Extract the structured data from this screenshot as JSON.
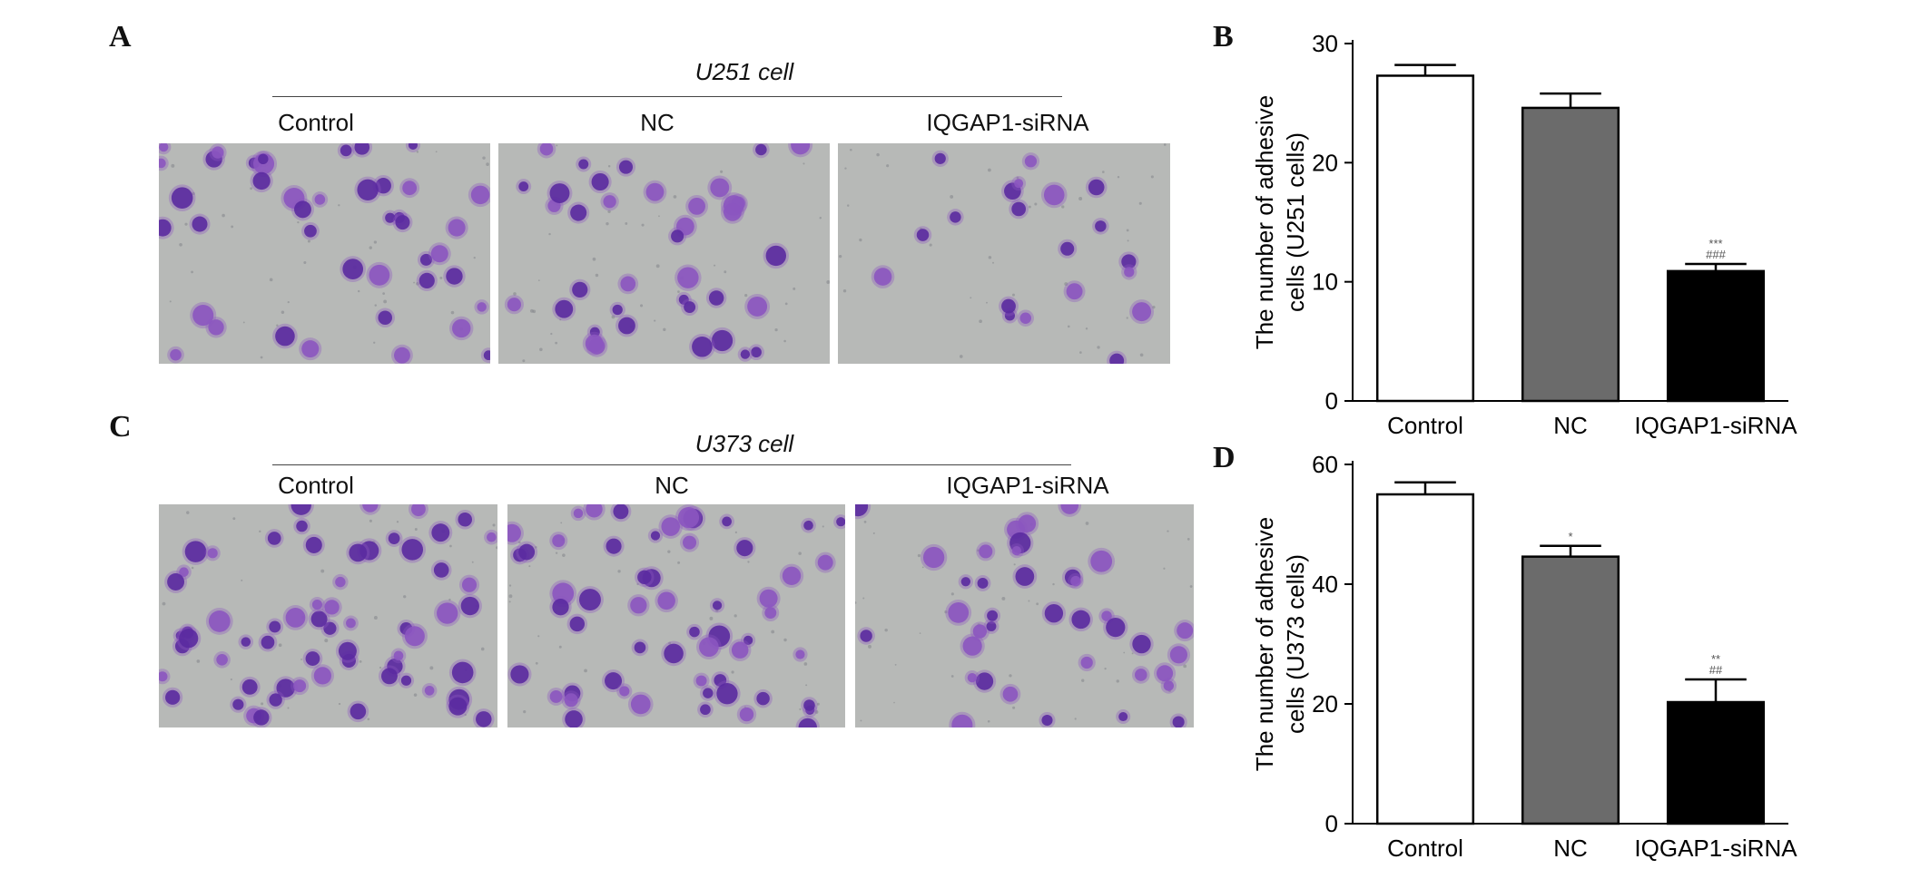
{
  "figure": {
    "panels": {
      "A": {
        "letter": "A",
        "cell_line": "U251 cell",
        "image_labels": [
          "Control",
          "NC",
          "IQGAP1-siRNA"
        ]
      },
      "C": {
        "letter": "C",
        "cell_line": "U373 cell",
        "image_labels": [
          "Control",
          "NC",
          "IQGAP1-siRNA"
        ]
      },
      "B": {
        "letter": "B"
      },
      "D": {
        "letter": "D"
      }
    },
    "colors": {
      "stain": "#5a2aa0",
      "stain_light": "#8b55c0",
      "background": "#b7b9b7",
      "bar_control": "#ffffff",
      "bar_nc": "#6b6b6b",
      "bar_sirna": "#000000"
    }
  },
  "chart_data": [
    {
      "id": "B",
      "type": "bar",
      "categories": [
        "Control",
        "NC",
        "IQGAP1-siRNA"
      ],
      "values": [
        27.3,
        24.6,
        10.9
      ],
      "errors": [
        0.9,
        1.2,
        0.6
      ],
      "significance": [
        "",
        "",
        "***\n###"
      ],
      "ylabel": "The number of adhesive cells (U251 cells)",
      "ylabel_lines": [
        "The number of adhesive",
        "cells (U251 cells)"
      ],
      "ylim": [
        0,
        30
      ],
      "yticks": [
        0,
        10,
        20,
        30
      ]
    },
    {
      "id": "D",
      "type": "bar",
      "categories": [
        "Control",
        "NC",
        "IQGAP1-siRNA"
      ],
      "values": [
        55.0,
        44.6,
        20.3
      ],
      "errors": [
        2.0,
        1.8,
        3.8
      ],
      "significance": [
        "",
        "*",
        "**\n##"
      ],
      "ylabel": "The number of adhesive cells (U373 cells)",
      "ylabel_lines": [
        "The number of adhesive",
        "cells (U373 cells)"
      ],
      "ylim": [
        0,
        60
      ],
      "yticks": [
        0,
        20,
        40,
        60
      ]
    }
  ]
}
